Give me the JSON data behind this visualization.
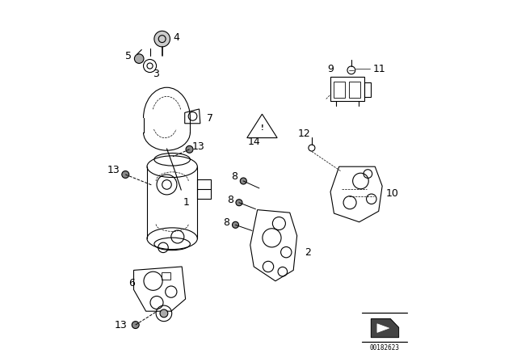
{
  "title": "",
  "bg_color": "#ffffff",
  "watermark": "00182623",
  "font_size_label": 9,
  "line_color": "#000000",
  "line_width": 0.8
}
